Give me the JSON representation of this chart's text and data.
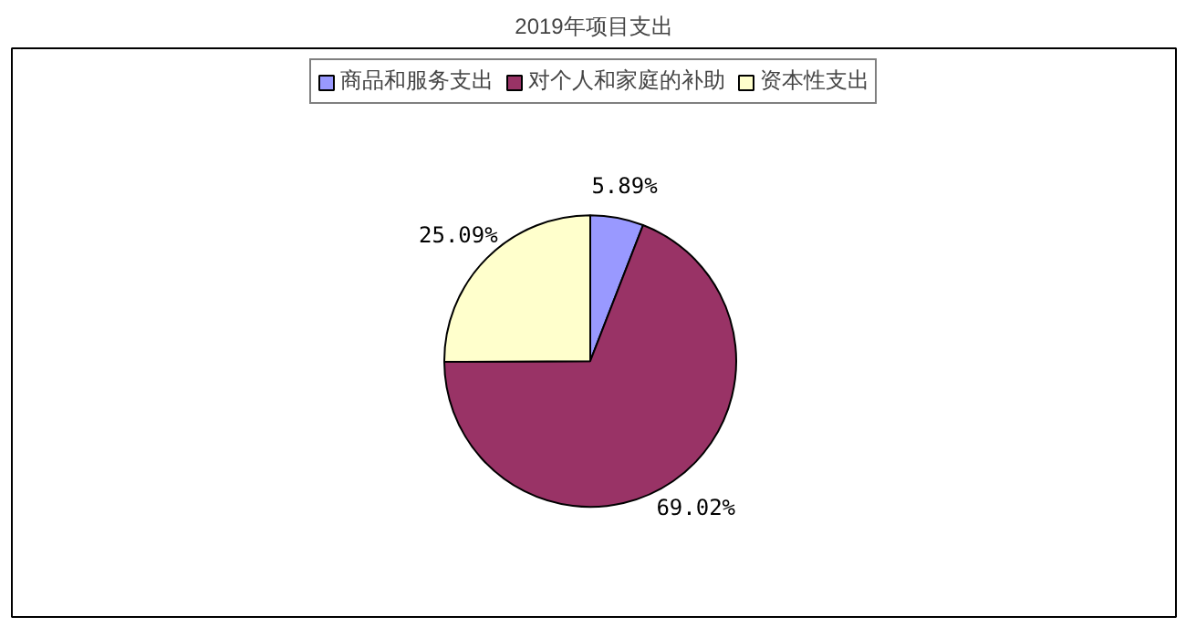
{
  "chart_data": {
    "type": "pie",
    "title": "2019年项目支出",
    "categories": [
      "商品和服务支出",
      "对个人和家庭的补助",
      "资本性支出"
    ],
    "values": [
      5.89,
      69.02,
      25.09
    ],
    "colors": [
      "#9999ff",
      "#993366",
      "#ffffcc"
    ],
    "value_labels": [
      "5.89%",
      "69.02%",
      "25.09%"
    ],
    "legend": "top"
  }
}
